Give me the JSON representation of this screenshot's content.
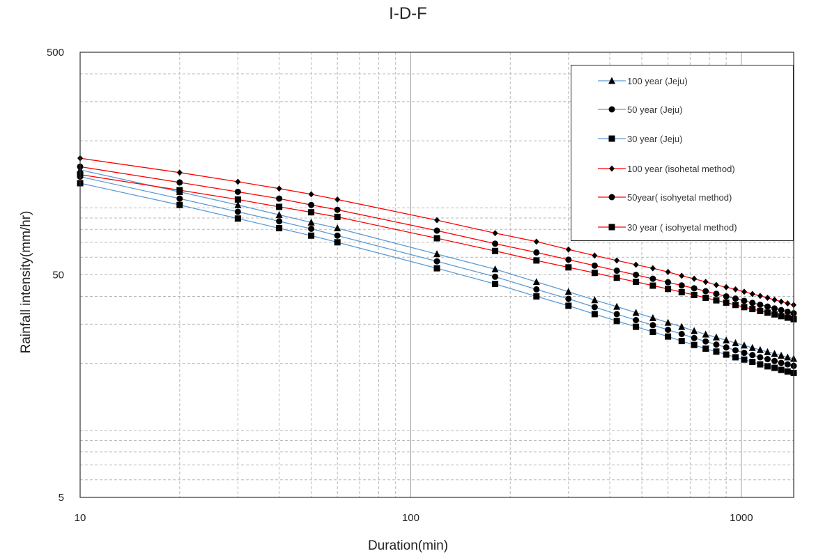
{
  "chart_data": {
    "type": "line",
    "title": "I-D-F",
    "xlabel": "Duration(min)",
    "ylabel": "Rainfall intensity(mm/hr)",
    "xscale": "log",
    "yscale": "log",
    "xlim": [
      10,
      1440
    ],
    "ylim": [
      5,
      500
    ],
    "x_ticks": [
      "10",
      "100",
      "1000"
    ],
    "y_ticks": [
      "5",
      "50",
      "500"
    ],
    "grid": true,
    "legend_position": "top-right",
    "x": [
      10,
      20,
      30,
      40,
      50,
      60,
      120,
      180,
      240,
      300,
      360,
      420,
      480,
      540,
      600,
      660,
      720,
      780,
      840,
      900,
      960,
      1020,
      1080,
      1140,
      1200,
      1260,
      1320,
      1380,
      1440
    ],
    "series": [
      {
        "name": "100 year (Jeju)",
        "color": "#5b9bd5",
        "marker": "triangle",
        "values": [
          148,
          118,
          103,
          93,
          86,
          81,
          62,
          53,
          46.5,
          42,
          38.5,
          36,
          33.8,
          32,
          30.5,
          29.2,
          28,
          27,
          26.2,
          25.4,
          24.7,
          24.1,
          23.5,
          23,
          22.5,
          22.1,
          21.7,
          21.3,
          21
        ]
      },
      {
        "name": "50 year (Jeju)",
        "color": "#5b9bd5",
        "marker": "circle",
        "values": [
          138,
          110,
          96,
          87,
          80.5,
          75,
          57.5,
          49,
          43,
          39,
          35.8,
          33.3,
          31.3,
          29.7,
          28.3,
          27.1,
          26,
          25.1,
          24.3,
          23.6,
          22.9,
          22.3,
          21.8,
          21.3,
          20.9,
          20.5,
          20.1,
          19.8,
          19.5
        ]
      },
      {
        "name": "30 year (Jeju)",
        "color": "#5b9bd5",
        "marker": "square",
        "values": [
          129,
          103,
          89.5,
          81,
          75,
          70,
          53.5,
          45.5,
          40,
          36.3,
          33.3,
          31,
          29.2,
          27.7,
          26.4,
          25.2,
          24.2,
          23.3,
          22.6,
          21.9,
          21.3,
          20.8,
          20.3,
          19.8,
          19.4,
          19.1,
          18.7,
          18.4,
          18.1
        ]
      },
      {
        "name": "100 year (isohetal method)",
        "color": "#ff0000",
        "marker": "diamond",
        "values": [
          167,
          144,
          131,
          122,
          115,
          109,
          88,
          77,
          70.5,
          65,
          61,
          58,
          55.5,
          53.5,
          51.5,
          49.5,
          48,
          46.5,
          45,
          44,
          43,
          42,
          41,
          40.2,
          39.4,
          38.6,
          37.9,
          37.2,
          36.6
        ]
      },
      {
        "name": "50year( isohyetal method)",
        "color": "#ff0000",
        "marker": "circle",
        "values": [
          153,
          130,
          118,
          110,
          103,
          98,
          79,
          69,
          63,
          58.5,
          55,
          52.2,
          50,
          48,
          46.3,
          44.8,
          43.5,
          42.2,
          41.1,
          40,
          39.1,
          38.2,
          37.4,
          36.7,
          36,
          35.3,
          34.7,
          34.1,
          33.6
        ]
      },
      {
        "name": "30 year ( isohyetal method)",
        "color": "#ff0000",
        "marker": "square",
        "values": [
          141,
          120,
          109,
          101,
          95.5,
          91,
          73,
          64,
          58,
          54,
          51,
          48.5,
          46.5,
          44.7,
          43.2,
          41.8,
          40.6,
          39.4,
          38.4,
          37.5,
          36.6,
          35.8,
          35.1,
          34.4,
          33.8,
          33.2,
          32.6,
          32.1,
          31.6
        ]
      }
    ]
  }
}
